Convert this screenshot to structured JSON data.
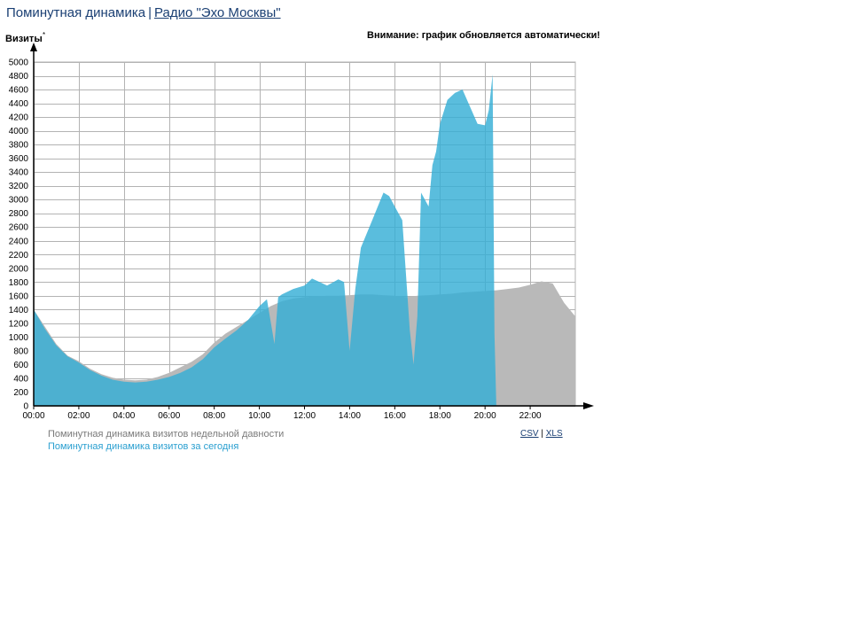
{
  "header": {
    "title": "Поминутная динамика",
    "separator": "|",
    "link": "Радио \"Эхо Москвы\""
  },
  "notice": "Внимание: график обновляется автоматически!",
  "legend": {
    "week": "Поминутная динамика визитов недельной давности",
    "today": "Поминутная динамика визитов за сегодня"
  },
  "links": {
    "csv": "CSV",
    "separator": "|",
    "xls": "XLS"
  },
  "colors": {
    "week": "#b9b9b9",
    "today": "#36afd6",
    "grid": "#b3b3b3"
  },
  "chart_data": {
    "type": "area",
    "ylabel": "Визиты",
    "ylim": [
      0,
      5000
    ],
    "yticks": [
      0,
      200,
      400,
      600,
      800,
      1000,
      1200,
      1400,
      1600,
      1800,
      2000,
      2200,
      2400,
      2600,
      2800,
      3000,
      3200,
      3400,
      3600,
      3800,
      4000,
      4200,
      4400,
      4600,
      4800,
      5000
    ],
    "xlim": [
      "00:00",
      "24:00"
    ],
    "xticks": [
      "00:00",
      "02:00",
      "04:00",
      "06:00",
      "08:00",
      "10:00",
      "12:00",
      "14:00",
      "16:00",
      "18:00",
      "20:00",
      "22:00"
    ],
    "grid": true,
    "series": [
      {
        "name": "Поминутная динамика визитов недельной давности",
        "color": "#b9b9b9",
        "points": [
          [
            "00:00",
            1400
          ],
          [
            "00:30",
            1150
          ],
          [
            "01:00",
            900
          ],
          [
            "01:30",
            730
          ],
          [
            "02:00",
            650
          ],
          [
            "02:30",
            540
          ],
          [
            "03:00",
            460
          ],
          [
            "03:30",
            410
          ],
          [
            "04:00",
            380
          ],
          [
            "04:30",
            370
          ],
          [
            "05:00",
            380
          ],
          [
            "05:30",
            420
          ],
          [
            "06:00",
            480
          ],
          [
            "06:30",
            560
          ],
          [
            "07:00",
            640
          ],
          [
            "07:30",
            750
          ],
          [
            "08:00",
            920
          ],
          [
            "08:30",
            1050
          ],
          [
            "09:00",
            1150
          ],
          [
            "09:30",
            1250
          ],
          [
            "10:00",
            1350
          ],
          [
            "10:30",
            1450
          ],
          [
            "11:00",
            1520
          ],
          [
            "11:30",
            1560
          ],
          [
            "12:00",
            1580
          ],
          [
            "12:30",
            1590
          ],
          [
            "13:00",
            1600
          ],
          [
            "13:30",
            1600
          ],
          [
            "14:00",
            1610
          ],
          [
            "14:30",
            1620
          ],
          [
            "15:00",
            1620
          ],
          [
            "15:30",
            1610
          ],
          [
            "16:00",
            1600
          ],
          [
            "16:30",
            1580
          ],
          [
            "17:00",
            1600
          ],
          [
            "17:30",
            1610
          ],
          [
            "18:00",
            1620
          ],
          [
            "18:30",
            1630
          ],
          [
            "19:00",
            1650
          ],
          [
            "19:30",
            1660
          ],
          [
            "20:00",
            1670
          ],
          [
            "20:30",
            1680
          ],
          [
            "21:00",
            1700
          ],
          [
            "21:30",
            1720
          ],
          [
            "22:00",
            1760
          ],
          [
            "22:30",
            1810
          ],
          [
            "23:00",
            1780
          ],
          [
            "23:30",
            1500
          ],
          [
            "24:00",
            1300
          ]
        ]
      },
      {
        "name": "Поминутная динамика визитов за сегодня",
        "color": "#36afd6",
        "points": [
          [
            "00:00",
            1400
          ],
          [
            "00:30",
            1120
          ],
          [
            "01:00",
            880
          ],
          [
            "01:30",
            720
          ],
          [
            "02:00",
            630
          ],
          [
            "02:30",
            520
          ],
          [
            "03:00",
            440
          ],
          [
            "03:30",
            380
          ],
          [
            "04:00",
            350
          ],
          [
            "04:30",
            340
          ],
          [
            "05:00",
            350
          ],
          [
            "05:30",
            380
          ],
          [
            "06:00",
            420
          ],
          [
            "06:30",
            480
          ],
          [
            "07:00",
            560
          ],
          [
            "07:30",
            680
          ],
          [
            "08:00",
            850
          ],
          [
            "08:30",
            980
          ],
          [
            "09:00",
            1100
          ],
          [
            "09:30",
            1250
          ],
          [
            "10:00",
            1450
          ],
          [
            "10:20",
            1550
          ],
          [
            "10:40",
            900
          ],
          [
            "10:50",
            1580
          ],
          [
            "11:00",
            1620
          ],
          [
            "11:30",
            1700
          ],
          [
            "12:00",
            1750
          ],
          [
            "12:20",
            1850
          ],
          [
            "12:40",
            1800
          ],
          [
            "13:00",
            1750
          ],
          [
            "13:30",
            1840
          ],
          [
            "13:45",
            1800
          ],
          [
            "14:00",
            800
          ],
          [
            "14:15",
            1700
          ],
          [
            "14:30",
            2300
          ],
          [
            "14:45",
            2500
          ],
          [
            "15:00",
            2700
          ],
          [
            "15:15",
            2900
          ],
          [
            "15:30",
            3100
          ],
          [
            "15:45",
            3050
          ],
          [
            "16:00",
            2900
          ],
          [
            "16:20",
            2700
          ],
          [
            "16:40",
            1100
          ],
          [
            "16:50",
            600
          ],
          [
            "17:00",
            1300
          ],
          [
            "17:10",
            3100
          ],
          [
            "17:20",
            3000
          ],
          [
            "17:30",
            2900
          ],
          [
            "17:40",
            3500
          ],
          [
            "17:50",
            3700
          ],
          [
            "18:00",
            4100
          ],
          [
            "18:20",
            4450
          ],
          [
            "18:40",
            4550
          ],
          [
            "19:00",
            4600
          ],
          [
            "19:20",
            4350
          ],
          [
            "19:40",
            4100
          ],
          [
            "20:00",
            4080
          ],
          [
            "20:10",
            4300
          ],
          [
            "20:20",
            4820
          ],
          [
            "20:25",
            1050
          ],
          [
            "20:30",
            0
          ]
        ]
      }
    ]
  }
}
